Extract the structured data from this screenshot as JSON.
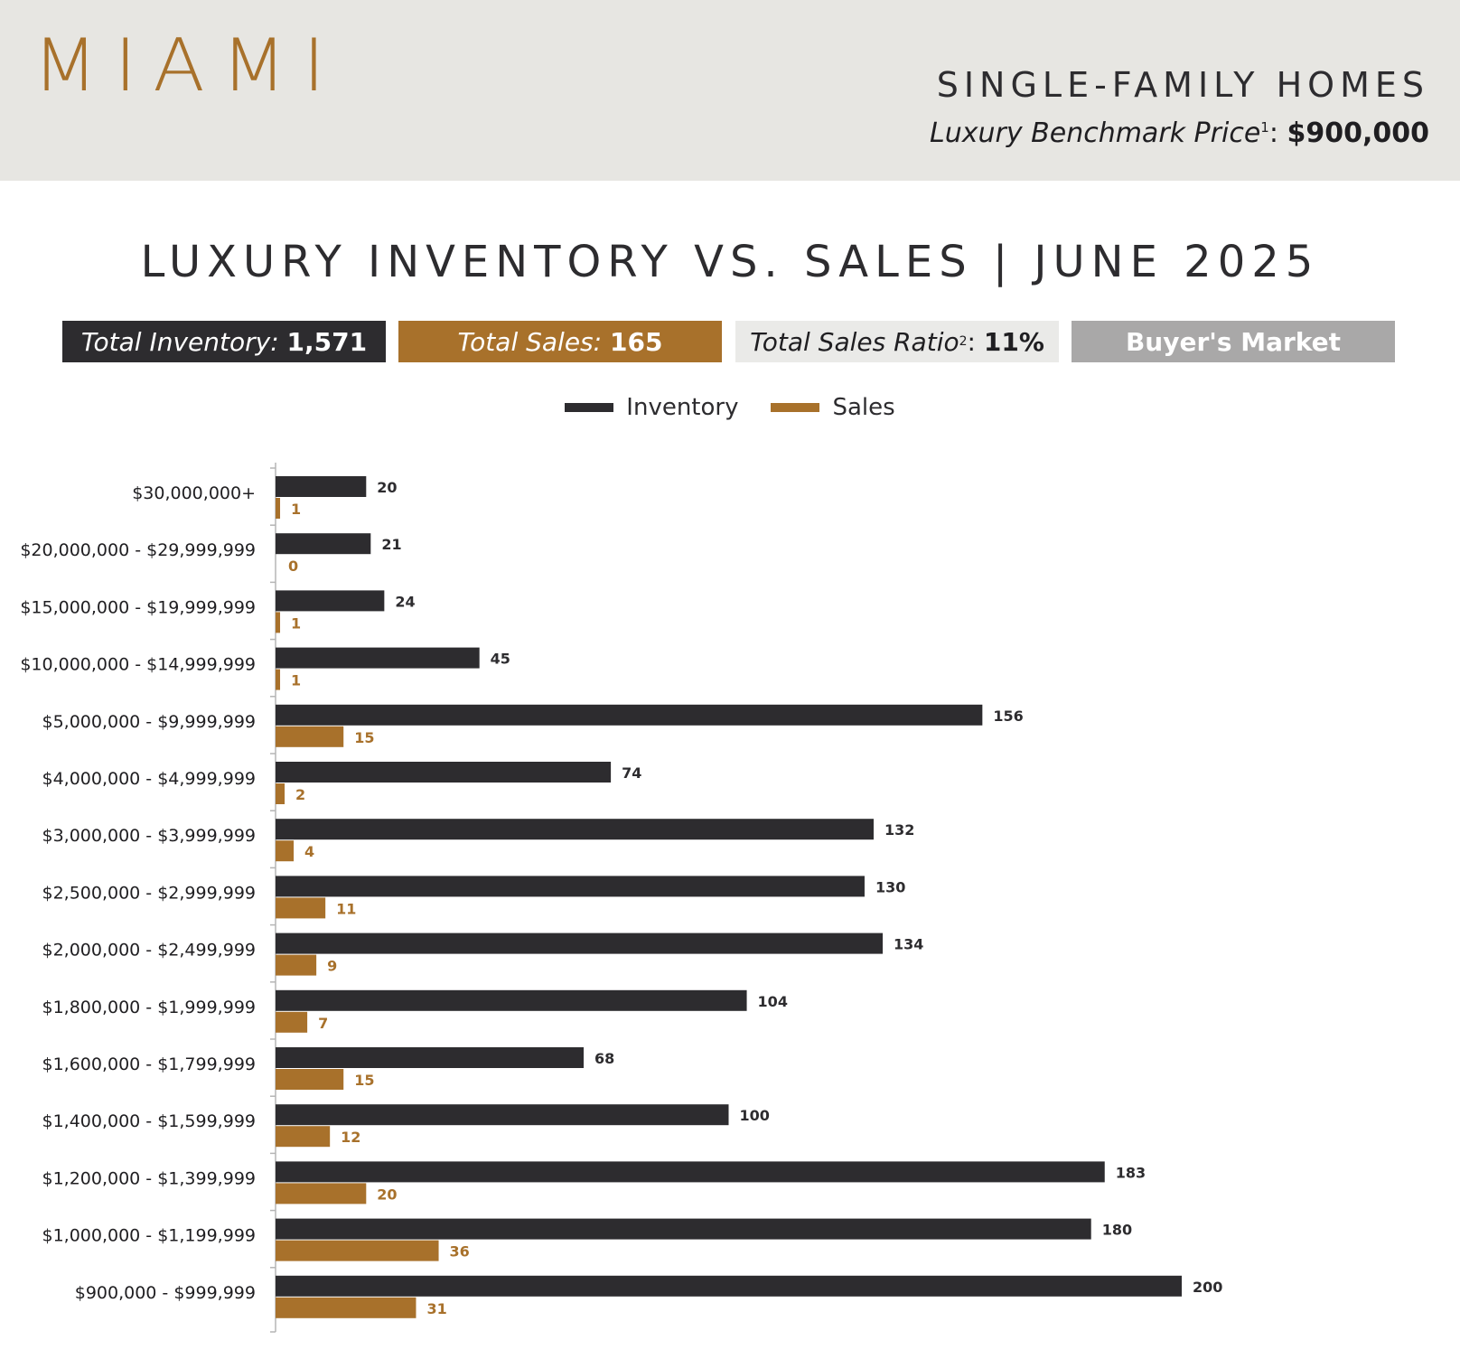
{
  "header": {
    "city": "MIAMI",
    "segment": "SINGLE-FAMILY HOMES",
    "benchmark_label": "Luxury Benchmark Price",
    "benchmark_sup": "1",
    "benchmark_sep": ":",
    "benchmark_value": "$900,000"
  },
  "title": "LUXURY INVENTORY VS. SALES | JUNE 2025",
  "stats": {
    "inventory_label": "Total Inventory:",
    "inventory_value": "1,571",
    "sales_label": "Total Sales:",
    "sales_value": "165",
    "ratio_label": "Total Sales Ratio",
    "ratio_sup": "2",
    "ratio_sep": ":",
    "ratio_value": "11%",
    "market": "Buyer's Market"
  },
  "colors": {
    "inventory": "#2d2c2f",
    "sales": "#a8712b"
  },
  "chart_data": {
    "type": "bar",
    "orientation": "horizontal",
    "title": "LUXURY INVENTORY VS. SALES | JUNE 2025",
    "xlabel": "",
    "ylabel": "",
    "xlim": [
      0,
      200
    ],
    "grid": false,
    "legend": "top-center",
    "categories": [
      "$30,000,000+",
      "$20,000,000 - $29,999,999",
      "$15,000,000 - $19,999,999",
      "$10,000,000 - $14,999,999",
      "$5,000,000 - $9,999,999",
      "$4,000,000 - $4,999,999",
      "$3,000,000 - $3,999,999",
      "$2,500,000 - $2,999,999",
      "$2,000,000 - $2,499,999",
      "$1,800,000 - $1,999,999",
      "$1,600,000 - $1,799,999",
      "$1,400,000 - $1,599,999",
      "$1,200,000 - $1,399,999",
      "$1,000,000 - $1,199,999",
      "$900,000 - $999,999"
    ],
    "series": [
      {
        "name": "Inventory",
        "values": [
          20,
          21,
          24,
          45,
          156,
          74,
          132,
          130,
          134,
          104,
          68,
          100,
          183,
          180,
          200
        ]
      },
      {
        "name": "Sales",
        "values": [
          1,
          0,
          1,
          1,
          15,
          2,
          4,
          11,
          9,
          7,
          15,
          12,
          20,
          36,
          31
        ]
      }
    ]
  }
}
